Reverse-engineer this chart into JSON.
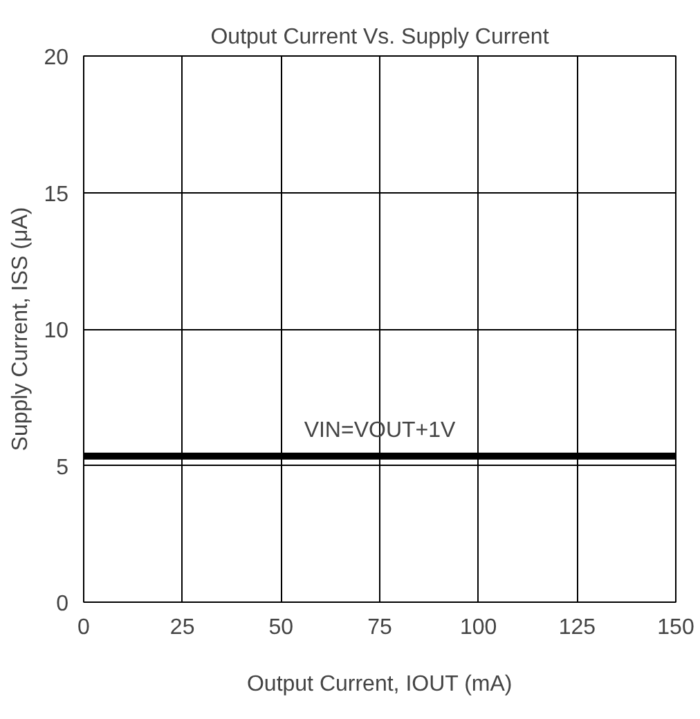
{
  "chart_data": {
    "type": "line",
    "title": "Output Current Vs. Supply Current",
    "xlabel": "Output Current, IOUT (mA)",
    "ylabel": "Supply Current, ISS (μA)",
    "x": [
      0,
      150
    ],
    "series": [
      {
        "color": "#000000",
        "values": [
          5.35,
          5.35
        ]
      }
    ],
    "annotations": [
      {
        "text": "VIN=VOUT+1V",
        "x": 75,
        "y": 5.35
      }
    ],
    "xlim": [
      0,
      150
    ],
    "ylim": [
      0,
      20
    ],
    "xticks": [
      0,
      25,
      50,
      75,
      100,
      125,
      150
    ],
    "yticks": [
      0,
      5,
      10,
      15,
      20
    ],
    "grid": true,
    "marker": "none",
    "line_style": "solid"
  }
}
